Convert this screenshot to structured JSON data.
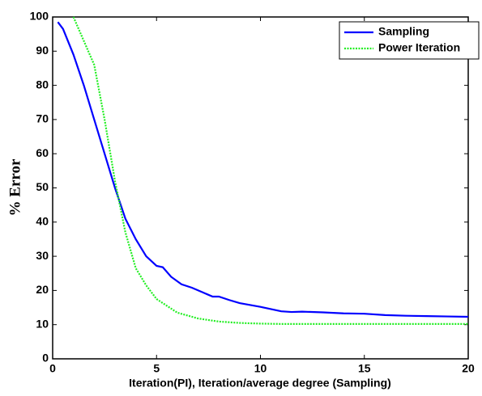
{
  "chart_data": {
    "type": "line",
    "xlabel": "Iteration(PI), Iteration/average degree (Sampling)",
    "ylabel": "% Error",
    "xlim": [
      0,
      20
    ],
    "xticks": [
      0,
      5,
      10,
      15,
      20
    ],
    "ylim": [
      0,
      100
    ],
    "yticks": [
      0,
      10,
      20,
      30,
      40,
      50,
      60,
      70,
      80,
      90,
      100
    ],
    "legend": "upper right",
    "series": [
      {
        "name": "Sampling",
        "color": "#0000ff",
        "style": "solid",
        "x": [
          0.25,
          0.5,
          1,
          1.5,
          2,
          2.5,
          3,
          3.5,
          4,
          4.5,
          5,
          5.3,
          5.7,
          6.2,
          6.7,
          7.2,
          7.7,
          8,
          8.5,
          9,
          10,
          11,
          11.5,
          12,
          13,
          14,
          15,
          16,
          17,
          18,
          19,
          20
        ],
        "values": [
          98.5,
          96.5,
          89,
          80,
          70,
          60,
          50,
          41,
          35,
          30,
          27.2,
          26.8,
          24,
          21.8,
          20.8,
          19.5,
          18.2,
          18.2,
          17.2,
          16.3,
          15.2,
          13.9,
          13.7,
          13.8,
          13.6,
          13.3,
          13.2,
          12.8,
          12.6,
          12.5,
          12.4,
          12.3
        ]
      },
      {
        "name": "Power Iteration",
        "color": "#22ee22",
        "style": "dotted",
        "x": [
          1,
          1.5,
          2,
          2.5,
          3,
          3.5,
          4,
          4.5,
          5,
          5.5,
          6,
          7,
          8,
          9,
          10,
          11,
          20
        ],
        "values": [
          100,
          93,
          86,
          70,
          52,
          37,
          26.5,
          21.5,
          17.5,
          15.5,
          13.5,
          11.8,
          10.9,
          10.5,
          10.3,
          10.2,
          10.2
        ]
      }
    ]
  }
}
